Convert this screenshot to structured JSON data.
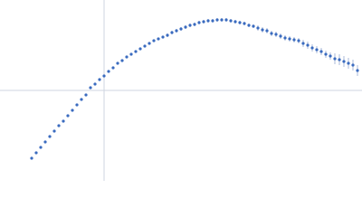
{
  "chart_data": {
    "type": "scatter",
    "xlim": [
      -115,
      285
    ],
    "ylim": [
      -100,
      100
    ],
    "color": "#3a6bbf",
    "error_color": "#a9b9da",
    "x": [
      -80,
      -75,
      -70,
      -65,
      -60,
      -55,
      -50,
      -45,
      -40,
      -35,
      -30,
      -25,
      -20,
      -15,
      -10,
      -5,
      0,
      5,
      10,
      15,
      20,
      25,
      30,
      35,
      40,
      45,
      50,
      55,
      60,
      65,
      70,
      75,
      80,
      85,
      90,
      95,
      100,
      105,
      110,
      115,
      120,
      125,
      130,
      135,
      140,
      145,
      150,
      155,
      160,
      165,
      170,
      175,
      180,
      185,
      190,
      195,
      200,
      205,
      210,
      215,
      220,
      225,
      230,
      235,
      240,
      245,
      250,
      255,
      260,
      265,
      270,
      275,
      280
    ],
    "values": [
      -75,
      -69,
      -63,
      -57,
      -51,
      -45,
      -39,
      -34,
      -28,
      -22,
      -16,
      -10,
      -5,
      3,
      7,
      12,
      16,
      21,
      25,
      30,
      33,
      37,
      40,
      43,
      46,
      49,
      52,
      55,
      57,
      59,
      61,
      64,
      66,
      68,
      70,
      72,
      73,
      75,
      76,
      77,
      77,
      78,
      78,
      78,
      77,
      76,
      75,
      74,
      72,
      71,
      69,
      67,
      66,
      63,
      62,
      60,
      58,
      57,
      56,
      55,
      52,
      50,
      47,
      45,
      43,
      40,
      38,
      35,
      34,
      32,
      30,
      28,
      22
    ],
    "errors": [
      1,
      1,
      1,
      1,
      1,
      1,
      1,
      1,
      1,
      1,
      1,
      1,
      1,
      1,
      1,
      1,
      1,
      1,
      1,
      1,
      1,
      1,
      1,
      1,
      1,
      1,
      1,
      1,
      1,
      1,
      2,
      2,
      2,
      2,
      2,
      2,
      2,
      2,
      2,
      2,
      2,
      2,
      2,
      2,
      2,
      2,
      2,
      2,
      2,
      2,
      3,
      3,
      3,
      3,
      3,
      3,
      3,
      3,
      3,
      3,
      4,
      4,
      4,
      4,
      4,
      4,
      4,
      6,
      6,
      6,
      6,
      6,
      6
    ]
  }
}
